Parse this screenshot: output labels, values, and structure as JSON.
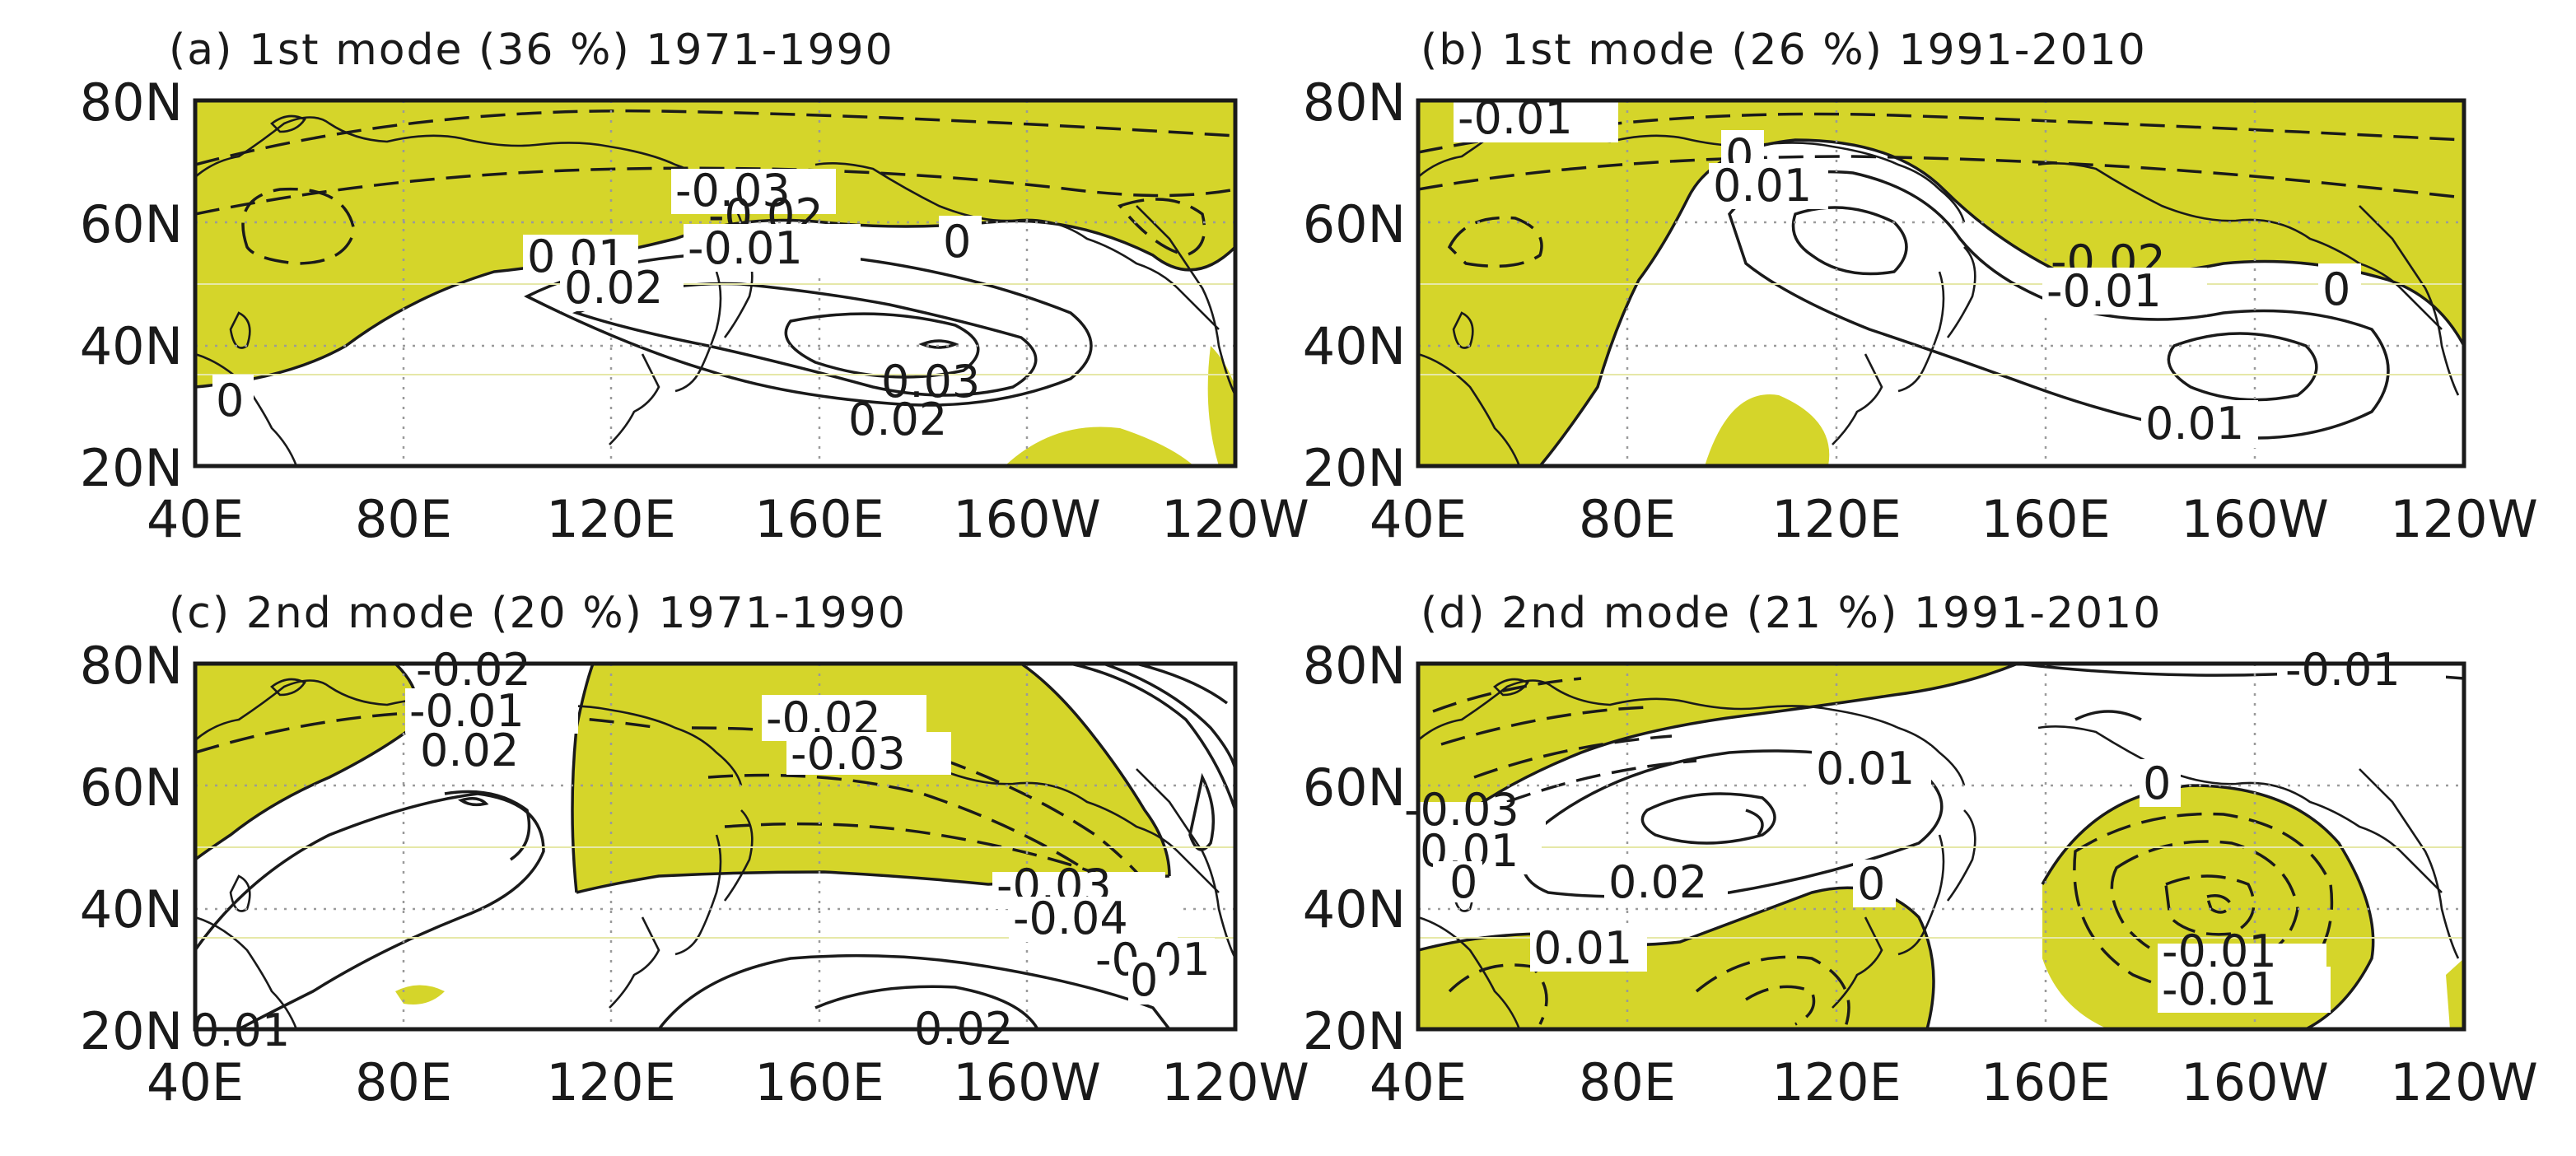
{
  "colors": {
    "negative_fill": "#d5d52a",
    "positive_fill": "#ffffff",
    "line": "#1a1a1a"
  },
  "panels": [
    {
      "id": "a",
      "title": "(a) 1st mode (36 %) 1971-1990",
      "lat_labels": [
        "80N",
        "60N",
        "40N",
        "20N"
      ],
      "lon_labels": [
        "40E",
        "80E",
        "120E",
        "160E",
        "160W",
        "120W"
      ],
      "contour_labels": [
        "-0.03",
        "-0.02",
        "-0.01",
        "0",
        "0.01",
        "0.02",
        "0.03",
        "0.02",
        "0"
      ]
    },
    {
      "id": "b",
      "title": "(b) 1st mode (26 %) 1991-2010",
      "lat_labels": [
        "80N",
        "60N",
        "40N",
        "20N"
      ],
      "lon_labels": [
        "40E",
        "80E",
        "120E",
        "160E",
        "160W",
        "120W"
      ],
      "contour_labels": [
        "-0.01",
        "0",
        "0.01",
        "-0.02",
        "-0.01",
        "0",
        "0.01"
      ]
    },
    {
      "id": "c",
      "title": "(c) 2nd mode (20 %) 1971-1990",
      "lat_labels": [
        "80N",
        "60N",
        "40N",
        "20N"
      ],
      "lon_labels": [
        "40E",
        "80E",
        "120E",
        "160E",
        "160W",
        "120W"
      ],
      "contour_labels": [
        "-0.02",
        "-0.01",
        "0.02",
        "-0.02",
        "-0.03",
        "-0.03",
        "-0.04",
        "-0.01",
        "0",
        "0.02",
        "0.01"
      ]
    },
    {
      "id": "d",
      "title": "(d) 2nd mode (21 %) 1991-2010",
      "lat_labels": [
        "80N",
        "60N",
        "40N",
        "20N"
      ],
      "lon_labels": [
        "40E",
        "80E",
        "120E",
        "160E",
        "160W",
        "120W"
      ],
      "contour_labels": [
        "-0.01",
        "0.01",
        "0",
        "-0.03",
        "0.01",
        "0",
        "0.02",
        "0",
        "0.01",
        "-0.01",
        "-0.01"
      ]
    }
  ]
}
